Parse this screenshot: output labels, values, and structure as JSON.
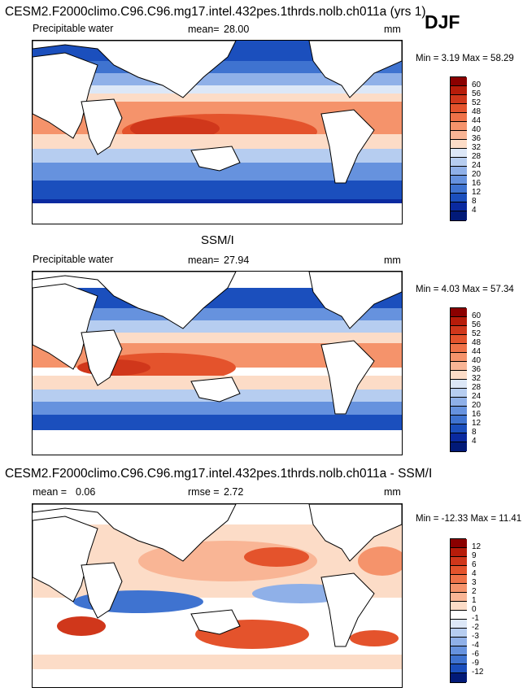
{
  "figure": {
    "title": "CESM2.F2000climo.C96.C96.mg17.intel.432pes.1thrds.nolb.ch011a (yrs 1)",
    "season": "DJF"
  },
  "panels": [
    {
      "variable": "Precipitable water",
      "mean_label": "mean=",
      "mean_value": "28.00",
      "units": "mm",
      "minmax": "Min =   3.19 Max =  58.29",
      "colorbar": {
        "labels": [
          "60",
          "56",
          "52",
          "48",
          "44",
          "40",
          "36",
          "32",
          "28",
          "24",
          "20",
          "16",
          "12",
          "8",
          "4"
        ],
        "colors": [
          "#8b0000",
          "#b71c0a",
          "#d0371b",
          "#e4532c",
          "#ef7248",
          "#f5936b",
          "#f9b595",
          "#fcdcc7",
          "#dce7f7",
          "#b6cdf0",
          "#8fb0e8",
          "#6692de",
          "#3f73d0",
          "#1b4fbd",
          "#0a2aa0",
          "#021a78"
        ]
      }
    },
    {
      "title": "SSM/I",
      "variable": "Precipitable water",
      "mean_label": "mean=",
      "mean_value": "27.94",
      "units": "mm",
      "minmax": "Min =   4.03 Max =  57.34",
      "colorbar": {
        "labels": [
          "60",
          "56",
          "52",
          "48",
          "44",
          "40",
          "36",
          "32",
          "28",
          "24",
          "20",
          "16",
          "12",
          "8",
          "4"
        ],
        "colors": [
          "#8b0000",
          "#b71c0a",
          "#d0371b",
          "#e4532c",
          "#ef7248",
          "#f5936b",
          "#f9b595",
          "#fcdcc7",
          "#dce7f7",
          "#b6cdf0",
          "#8fb0e8",
          "#6692de",
          "#3f73d0",
          "#1b4fbd",
          "#0a2aa0",
          "#021a78"
        ]
      }
    },
    {
      "title": "CESM2.F2000climo.C96.C96.mg17.intel.432pes.1thrds.nolb.ch011a - SSM/I",
      "mean_label": "mean =",
      "mean_value": "0.06",
      "rmse_label": "rmse =",
      "rmse_value": "2.72",
      "units": "mm",
      "minmax": "Min = -12.33 Max =  11.41",
      "colorbar": {
        "labels": [
          "12",
          "9",
          "6",
          "4",
          "3",
          "2",
          "1",
          "0",
          "-1",
          "-2",
          "-3",
          "-4",
          "-6",
          "-9",
          "-12"
        ],
        "colors": [
          "#8b0000",
          "#b71c0a",
          "#d0371b",
          "#e4532c",
          "#ef7248",
          "#f5936b",
          "#f9b595",
          "#fcdcc7",
          "#ffffff",
          "#dce7f7",
          "#b6cdf0",
          "#8fb0e8",
          "#6692de",
          "#3f73d0",
          "#1b4fbd",
          "#021a78"
        ]
      }
    }
  ]
}
